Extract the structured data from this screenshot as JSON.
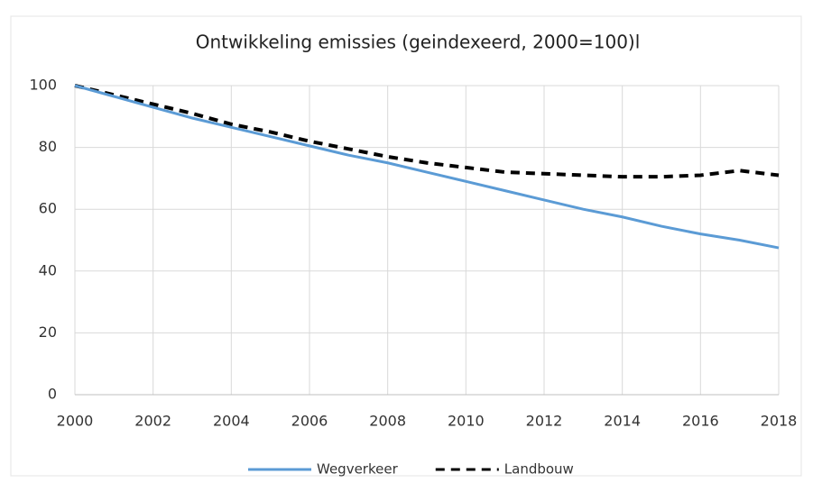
{
  "chart_data": {
    "type": "line",
    "title": "Ontwikkeling emissies (geindexeerd, 2000=100)l",
    "x": [
      2000,
      2001,
      2002,
      2003,
      2004,
      2005,
      2006,
      2007,
      2008,
      2009,
      2010,
      2011,
      2012,
      2013,
      2014,
      2015,
      2016,
      2017,
      2018
    ],
    "series": [
      {
        "name": "Wegverkeer",
        "color": "#5b9bd5",
        "line_style": "solid",
        "values": [
          100,
          96.5,
          93,
          89.5,
          86.5,
          83.5,
          80.5,
          77.5,
          75,
          72,
          69,
          66,
          63,
          60,
          57.5,
          54.5,
          52,
          50,
          47.5
        ]
      },
      {
        "name": "Landbouw",
        "color": "#000000",
        "line_style": "dashed",
        "values": [
          100,
          97,
          94,
          91,
          87.5,
          85,
          82,
          79.5,
          77,
          75,
          73.5,
          72,
          71.5,
          71,
          70.5,
          70.5,
          71,
          72.5,
          71
        ]
      }
    ],
    "xlim": [
      2000,
      2018
    ],
    "xticks": [
      2000,
      2002,
      2004,
      2006,
      2008,
      2010,
      2012,
      2014,
      2016,
      2018
    ],
    "ylim": [
      0,
      100
    ],
    "yticks": [
      0,
      20,
      40,
      60,
      80,
      100
    ],
    "grid": true,
    "legend": "bottom"
  }
}
